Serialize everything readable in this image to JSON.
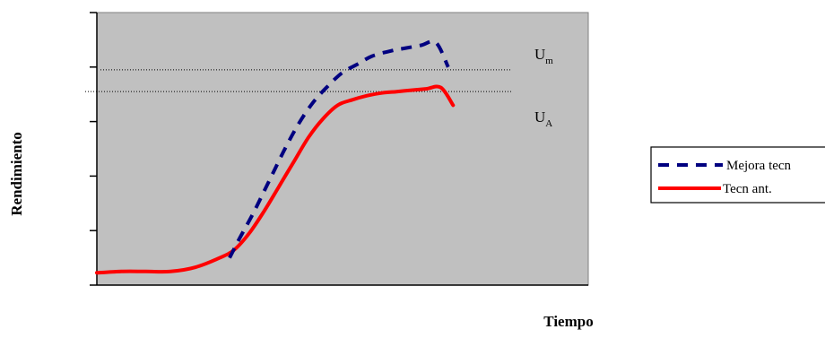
{
  "chart_data": {
    "type": "line",
    "xlabel": "Tiempo",
    "ylabel": "Rendimiento",
    "xlim": [
      0,
      100
    ],
    "ylim": [
      0,
      100
    ],
    "grid": false,
    "ticks_labeled": false,
    "y_tick_count": 5,
    "legend_position": "right",
    "colors": {
      "plot_background": "#c0c0c0",
      "plot_border": "#808080",
      "mejora": "#000080",
      "anterior": "#ff0000",
      "reference": "#000000"
    },
    "series": [
      {
        "name": "Mejora tecn",
        "style": "dashed",
        "color": "#000080",
        "x": [
          27,
          29,
          32,
          35,
          38,
          41,
          44,
          47,
          50,
          53,
          56,
          60,
          63,
          66,
          69,
          71.5
        ],
        "y": [
          10,
          17,
          27,
          38,
          49,
          59,
          67,
          73,
          78,
          81,
          84,
          86,
          87,
          88,
          89,
          80
        ]
      },
      {
        "name": "Tecn ant.",
        "style": "solid",
        "color": "#ff0000",
        "x": [
          0,
          5,
          10,
          15,
          20,
          25,
          28,
          31,
          34,
          37,
          40,
          43,
          46,
          49,
          52,
          55,
          58,
          61,
          64,
          67,
          70,
          72.5
        ],
        "y": [
          4.5,
          5,
          5,
          5,
          6.5,
          10,
          13,
          19,
          27,
          36,
          45,
          54,
          61,
          66,
          68,
          69.5,
          70.5,
          71,
          71.5,
          72,
          72.5,
          66
        ]
      }
    ],
    "reference_lines": [
      {
        "label": "U",
        "subscript": "m",
        "y": 79
      },
      {
        "label": "U",
        "subscript": "A",
        "y": 71
      }
    ]
  }
}
